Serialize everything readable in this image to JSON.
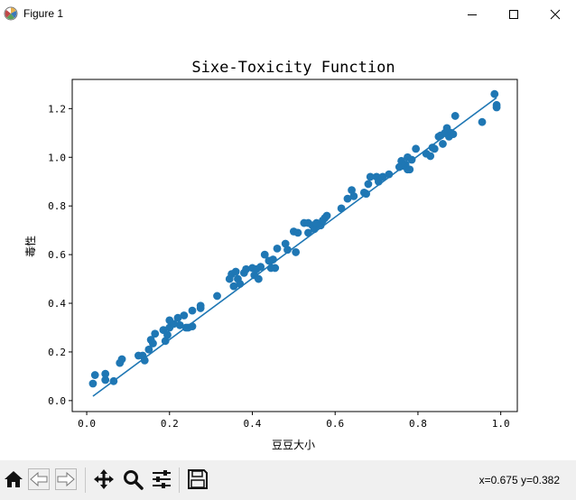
{
  "window": {
    "title": "Figure 1",
    "controls": [
      "minimize",
      "maximize",
      "close"
    ]
  },
  "toolbar": {
    "buttons": [
      "home-icon",
      "back-arrow-icon",
      "forward-arrow-icon",
      "pan-icon",
      "zoom-icon",
      "subplots-config-icon",
      "save-icon"
    ],
    "coordinates": "x=0.675 y=0.382"
  },
  "chart_data": {
    "type": "scatter",
    "title": "Sixe-Toxicity Function",
    "xlabel": "豆豆大小",
    "ylabel": "毒性",
    "xlim": [
      -0.035,
      1.04
    ],
    "ylim": [
      -0.045,
      1.32
    ],
    "xticks": [
      "0.0",
      "0.2",
      "0.4",
      "0.6",
      "0.8",
      "1.0"
    ],
    "yticks": [
      "0.0",
      "0.2",
      "0.4",
      "0.6",
      "0.8",
      "1.0",
      "1.2"
    ],
    "grid": false,
    "colors": {
      "series": "#1f77b4"
    },
    "series": [
      {
        "type": "scatter",
        "points": [
          [
            0.015,
            0.07
          ],
          [
            0.02,
            0.105
          ],
          [
            0.045,
            0.085
          ],
          [
            0.045,
            0.11
          ],
          [
            0.065,
            0.08
          ],
          [
            0.08,
            0.155
          ],
          [
            0.085,
            0.17
          ],
          [
            0.125,
            0.185
          ],
          [
            0.135,
            0.185
          ],
          [
            0.14,
            0.165
          ],
          [
            0.15,
            0.21
          ],
          [
            0.155,
            0.25
          ],
          [
            0.16,
            0.235
          ],
          [
            0.165,
            0.275
          ],
          [
            0.185,
            0.29
          ],
          [
            0.19,
            0.245
          ],
          [
            0.195,
            0.27
          ],
          [
            0.2,
            0.3
          ],
          [
            0.2,
            0.33
          ],
          [
            0.21,
            0.315
          ],
          [
            0.22,
            0.34
          ],
          [
            0.225,
            0.31
          ],
          [
            0.235,
            0.35
          ],
          [
            0.24,
            0.3
          ],
          [
            0.245,
            0.3
          ],
          [
            0.255,
            0.305
          ],
          [
            0.255,
            0.37
          ],
          [
            0.275,
            0.38
          ],
          [
            0.275,
            0.39
          ],
          [
            0.315,
            0.43
          ],
          [
            0.345,
            0.5
          ],
          [
            0.35,
            0.52
          ],
          [
            0.355,
            0.47
          ],
          [
            0.36,
            0.53
          ],
          [
            0.365,
            0.5
          ],
          [
            0.37,
            0.48
          ],
          [
            0.38,
            0.525
          ],
          [
            0.385,
            0.54
          ],
          [
            0.4,
            0.545
          ],
          [
            0.405,
            0.515
          ],
          [
            0.41,
            0.54
          ],
          [
            0.415,
            0.5
          ],
          [
            0.42,
            0.55
          ],
          [
            0.43,
            0.6
          ],
          [
            0.44,
            0.575
          ],
          [
            0.445,
            0.545
          ],
          [
            0.45,
            0.58
          ],
          [
            0.455,
            0.545
          ],
          [
            0.46,
            0.625
          ],
          [
            0.48,
            0.645
          ],
          [
            0.485,
            0.62
          ],
          [
            0.5,
            0.695
          ],
          [
            0.505,
            0.61
          ],
          [
            0.51,
            0.69
          ],
          [
            0.525,
            0.73
          ],
          [
            0.535,
            0.73
          ],
          [
            0.535,
            0.69
          ],
          [
            0.545,
            0.72
          ],
          [
            0.55,
            0.705
          ],
          [
            0.555,
            0.73
          ],
          [
            0.565,
            0.72
          ],
          [
            0.57,
            0.74
          ],
          [
            0.575,
            0.75
          ],
          [
            0.58,
            0.76
          ],
          [
            0.615,
            0.79
          ],
          [
            0.63,
            0.83
          ],
          [
            0.64,
            0.865
          ],
          [
            0.645,
            0.84
          ],
          [
            0.67,
            0.855
          ],
          [
            0.675,
            0.85
          ],
          [
            0.68,
            0.89
          ],
          [
            0.685,
            0.92
          ],
          [
            0.7,
            0.92
          ],
          [
            0.705,
            0.9
          ],
          [
            0.715,
            0.92
          ],
          [
            0.73,
            0.93
          ],
          [
            0.755,
            0.96
          ],
          [
            0.76,
            0.985
          ],
          [
            0.765,
            0.965
          ],
          [
            0.77,
            0.97
          ],
          [
            0.775,
            1.0
          ],
          [
            0.775,
            0.95
          ],
          [
            0.78,
            0.95
          ],
          [
            0.785,
            0.99
          ],
          [
            0.795,
            1.035
          ],
          [
            0.82,
            1.015
          ],
          [
            0.83,
            1.005
          ],
          [
            0.835,
            1.04
          ],
          [
            0.84,
            1.035
          ],
          [
            0.85,
            1.085
          ],
          [
            0.855,
            1.09
          ],
          [
            0.86,
            1.055
          ],
          [
            0.865,
            1.1
          ],
          [
            0.87,
            1.12
          ],
          [
            0.875,
            1.085
          ],
          [
            0.88,
            1.1
          ],
          [
            0.885,
            1.095
          ],
          [
            0.89,
            1.17
          ],
          [
            0.955,
            1.145
          ],
          [
            0.985,
            1.26
          ],
          [
            0.99,
            1.215
          ],
          [
            0.99,
            1.205
          ]
        ]
      },
      {
        "type": "line",
        "points": [
          [
            0.015,
            0.018
          ],
          [
            0.99,
            1.245
          ]
        ]
      }
    ]
  }
}
